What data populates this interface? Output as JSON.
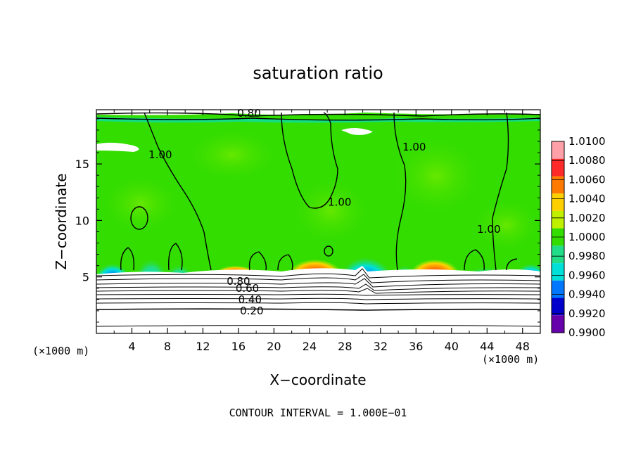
{
  "chart_data": {
    "type": "heatmap",
    "title": "saturation ratio",
    "xlabel": "X−coordinate",
    "ylabel": "Z−coordinate",
    "x_unit_label": "(×1000 m)",
    "z_unit_label": "(×1000 m)",
    "xlim": [
      0,
      50
    ],
    "ylim": [
      0,
      19.8
    ],
    "x_ticks": [
      4,
      8,
      12,
      16,
      20,
      24,
      28,
      32,
      36,
      40,
      44,
      48
    ],
    "y_ticks": [
      5,
      10,
      15
    ],
    "footer": "CONTOUR INTERVAL = 1.000E−01",
    "colorbar": {
      "levels": [
        "1.0100",
        "1.0080",
        "1.0060",
        "1.0040",
        "1.0020",
        "1.0000",
        "0.9980",
        "0.9960",
        "0.9940",
        "0.9920",
        "0.9900"
      ],
      "colors": [
        "#ff9fa8",
        "#ff2a2a",
        "#ff7a00",
        "#ffd000",
        "#bff000",
        "#33dd00",
        "#22dd88",
        "#00e0d8",
        "#0077ff",
        "#0000cc",
        "#6600aa"
      ]
    },
    "contour_labels": [
      {
        "text": "0.80",
        "x": 17.2,
        "z": 19.5
      },
      {
        "text": "1.00",
        "x": 7.2,
        "z": 15.8
      },
      {
        "text": "1.00",
        "x": 27.4,
        "z": 11.6
      },
      {
        "text": "1.00",
        "x": 35.8,
        "z": 16.5
      },
      {
        "text": "1.00",
        "x": 44.2,
        "z": 9.2
      },
      {
        "text": "0.80",
        "x": 16.0,
        "z": 4.6
      },
      {
        "text": "0.60",
        "x": 17.0,
        "z": 4.0
      },
      {
        "text": "0.40",
        "x": 17.3,
        "z": 3.0
      },
      {
        "text": "0.20",
        "x": 17.5,
        "z": 2.0
      }
    ]
  }
}
